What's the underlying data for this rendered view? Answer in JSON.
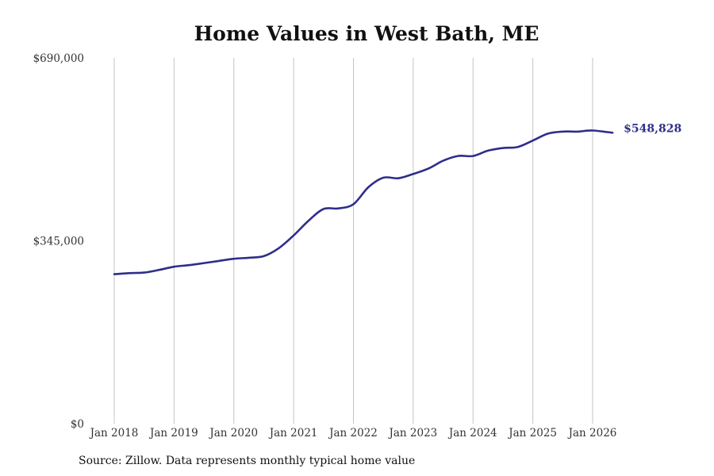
{
  "chart_data": {
    "type": "line",
    "title": "Home Values in West Bath, ME",
    "xlabel": "",
    "ylabel": "",
    "ylim": [
      0,
      690000
    ],
    "y_ticks": [
      {
        "value": 0,
        "label": "$0"
      },
      {
        "value": 345000,
        "label": "$345,000"
      },
      {
        "value": 690000,
        "label": "$690,000"
      }
    ],
    "x_ticks": [
      "Jan 2018",
      "Jan 2019",
      "Jan 2020",
      "Jan 2021",
      "Jan 2022",
      "Jan 2023",
      "Jan 2024",
      "Jan 2025",
      "Jan 2026"
    ],
    "grid": "vertical",
    "series": [
      {
        "color": "#2e2e8a",
        "points": [
          {
            "x": "2018-01",
            "y": 282000
          },
          {
            "x": "2018-04",
            "y": 284000
          },
          {
            "x": "2018-07",
            "y": 285000
          },
          {
            "x": "2018-10",
            "y": 290000
          },
          {
            "x": "2019-01",
            "y": 296000
          },
          {
            "x": "2019-04",
            "y": 299000
          },
          {
            "x": "2019-07",
            "y": 303000
          },
          {
            "x": "2019-10",
            "y": 307000
          },
          {
            "x": "2020-01",
            "y": 311000
          },
          {
            "x": "2020-04",
            "y": 313000
          },
          {
            "x": "2020-07",
            "y": 316000
          },
          {
            "x": "2020-10",
            "y": 331000
          },
          {
            "x": "2021-01",
            "y": 355000
          },
          {
            "x": "2021-04",
            "y": 383000
          },
          {
            "x": "2021-07",
            "y": 405000
          },
          {
            "x": "2021-10",
            "y": 406000
          },
          {
            "x": "2022-01",
            "y": 414000
          },
          {
            "x": "2022-04",
            "y": 446000
          },
          {
            "x": "2022-07",
            "y": 464000
          },
          {
            "x": "2022-10",
            "y": 463000
          },
          {
            "x": "2023-01",
            "y": 471000
          },
          {
            "x": "2023-04",
            "y": 481000
          },
          {
            "x": "2023-07",
            "y": 496000
          },
          {
            "x": "2023-10",
            "y": 505000
          },
          {
            "x": "2024-01",
            "y": 505000
          },
          {
            "x": "2024-04",
            "y": 515000
          },
          {
            "x": "2024-07",
            "y": 520000
          },
          {
            "x": "2024-10",
            "y": 522000
          },
          {
            "x": "2025-01",
            "y": 534000
          },
          {
            "x": "2025-04",
            "y": 547000
          },
          {
            "x": "2025-07",
            "y": 551000
          },
          {
            "x": "2025-10",
            "y": 551000
          },
          {
            "x": "2026-01",
            "y": 553000
          },
          {
            "x": "2026-05",
            "y": 548828
          }
        ]
      }
    ],
    "end_label": "$548,828"
  },
  "source": "Source: Zillow. Data represents monthly typical home value"
}
